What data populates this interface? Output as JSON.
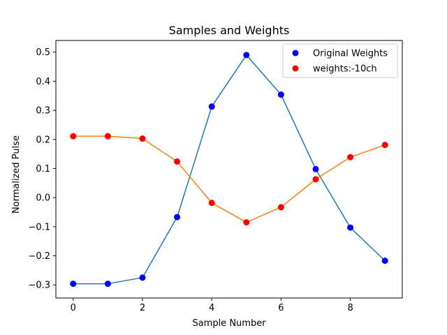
{
  "chart_data": {
    "type": "line",
    "title": "Samples and Weights",
    "xlabel": "Sample Number",
    "ylabel": "Normalized Pulse",
    "xlim": [
      -0.5,
      9.5
    ],
    "ylim": [
      -0.345,
      0.54
    ],
    "xticks": [
      0,
      2,
      4,
      6,
      8
    ],
    "yticks": [
      -0.3,
      -0.2,
      -0.1,
      0.0,
      0.1,
      0.2,
      0.3,
      0.4,
      0.5
    ],
    "ytick_labels": [
      "−0.3",
      "−0.2",
      "−0.1",
      "0.0",
      "0.1",
      "0.2",
      "0.3",
      "0.4",
      "0.5"
    ],
    "grid": false,
    "legend_position": "top-right",
    "x": [
      0,
      1,
      2,
      3,
      4,
      5,
      6,
      7,
      8,
      9
    ],
    "series": [
      {
        "name": "Original Weights",
        "values": [
          -0.296,
          -0.296,
          -0.275,
          -0.067,
          0.313,
          0.49,
          0.354,
          0.098,
          -0.103,
          -0.217
        ],
        "marker_color": "#0000ff",
        "line_color": "#1f77b4"
      },
      {
        "name": "weights:-10ch",
        "values": [
          0.211,
          0.211,
          0.203,
          0.124,
          -0.018,
          -0.085,
          -0.033,
          0.063,
          0.139,
          0.181
        ],
        "marker_color": "#ff0000",
        "line_color": "#ff7f0e"
      }
    ]
  }
}
